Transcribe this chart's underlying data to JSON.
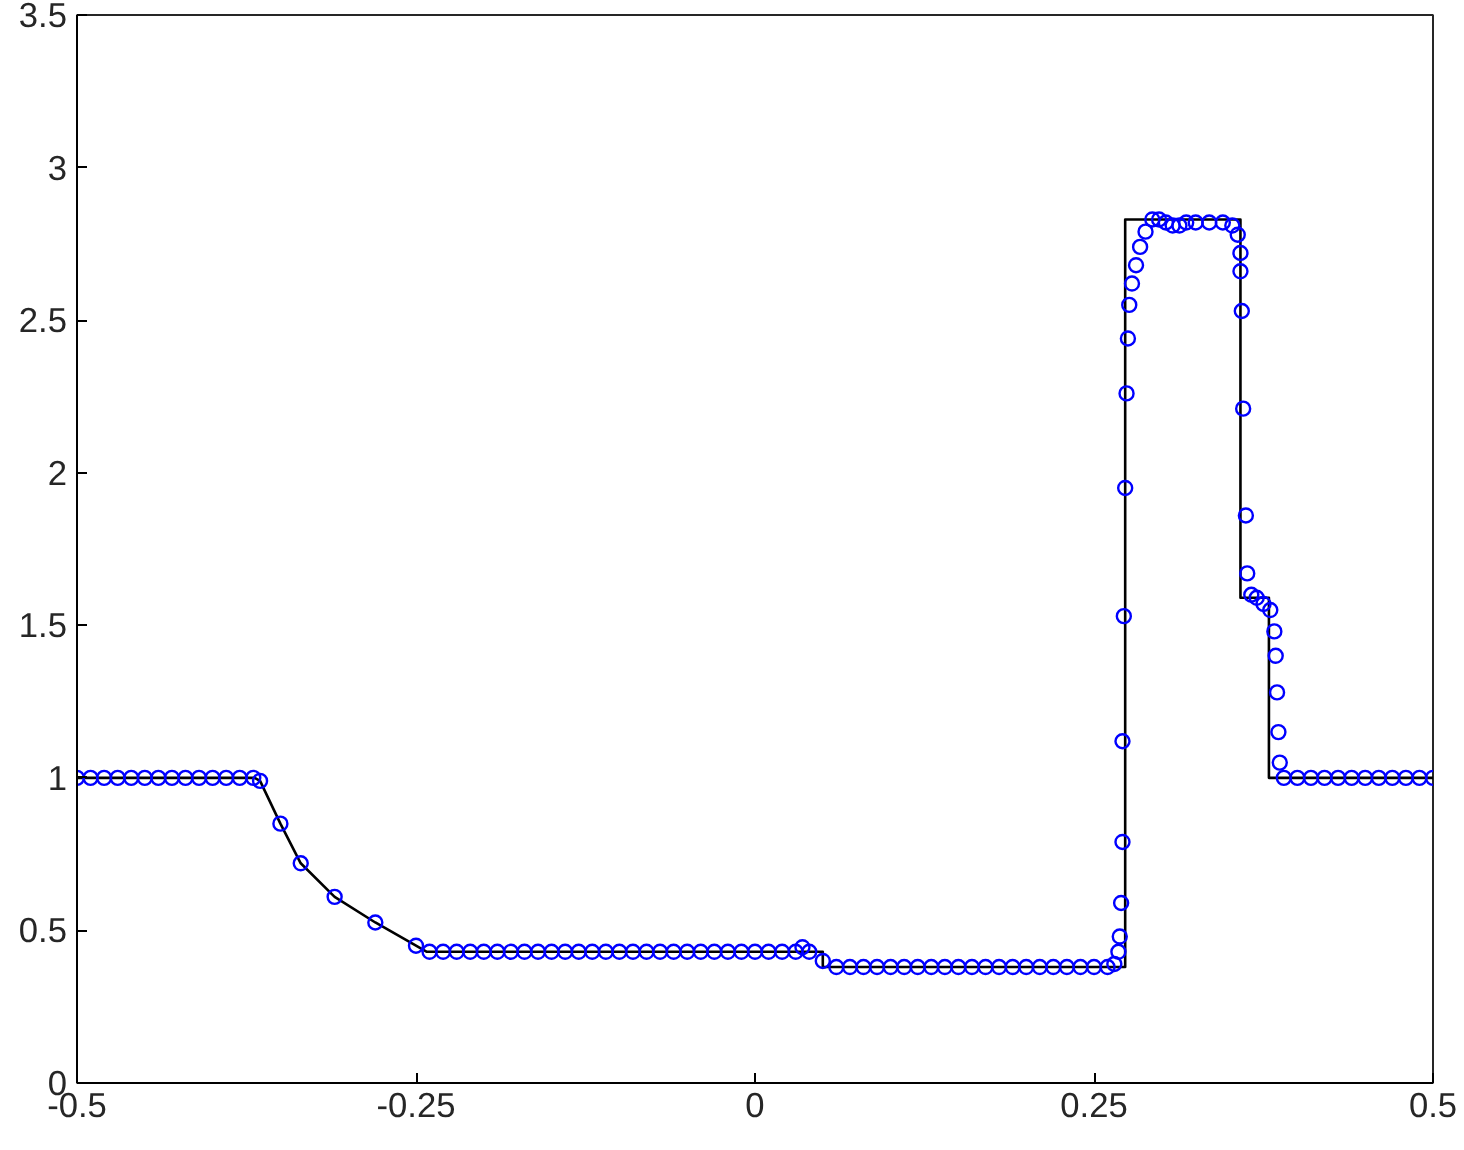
{
  "chart_data": {
    "type": "scatter",
    "xlim": [
      -0.5,
      0.5
    ],
    "ylim": [
      0,
      3.5
    ],
    "xticks": [
      -0.5,
      -0.25,
      0,
      0.25,
      0.5
    ],
    "yticks": [
      0,
      0.5,
      1,
      1.5,
      2,
      2.5,
      3,
      3.5
    ],
    "grid": false,
    "series": [
      {
        "type": "line",
        "color": "#000000",
        "line_style": "solid",
        "marker": "none",
        "x": [
          -0.5,
          -0.369,
          -0.365,
          -0.35,
          -0.335,
          -0.31,
          -0.28,
          -0.25,
          -0.242,
          0.05,
          0.05,
          0.273,
          0.273,
          0.358,
          0.358,
          0.379,
          0.379,
          0.5
        ],
        "values": [
          1.0,
          1.0,
          0.99,
          0.85,
          0.72,
          0.61,
          0.526,
          0.45,
          0.43,
          0.43,
          0.38,
          0.38,
          2.83,
          2.83,
          1.59,
          1.59,
          1.0,
          1.0
        ]
      },
      {
        "color": "#0000ff",
        "marker": "circle",
        "x": [
          -0.5,
          -0.49,
          -0.48,
          -0.47,
          -0.46,
          -0.45,
          -0.44,
          -0.43,
          -0.42,
          -0.41,
          -0.4,
          -0.39,
          -0.38,
          -0.37,
          -0.365,
          -0.35,
          -0.335,
          -0.31,
          -0.28,
          -0.25,
          -0.24,
          -0.23,
          -0.22,
          -0.21,
          -0.2,
          -0.19,
          -0.18,
          -0.17,
          -0.16,
          -0.15,
          -0.14,
          -0.13,
          -0.12,
          -0.11,
          -0.1,
          -0.09,
          -0.08,
          -0.07,
          -0.06,
          -0.05,
          -0.04,
          -0.03,
          -0.02,
          -0.01,
          0,
          0.01,
          0.02,
          0.03,
          0.035,
          0.04,
          0.05,
          0.06,
          0.07,
          0.08,
          0.09,
          0.1,
          0.11,
          0.12,
          0.13,
          0.14,
          0.15,
          0.16,
          0.17,
          0.18,
          0.19,
          0.2,
          0.21,
          0.22,
          0.23,
          0.24,
          0.25,
          0.26,
          0.265,
          0.268,
          0.269,
          0.27,
          0.271,
          0.271,
          0.272,
          0.273,
          0.274,
          0.275,
          0.276,
          0.278,
          0.281,
          0.284,
          0.288,
          0.293,
          0.298,
          0.303,
          0.308,
          0.313,
          0.318,
          0.325,
          0.335,
          0.345,
          0.352,
          0.356,
          0.358,
          0.358,
          0.359,
          0.36,
          0.362,
          0.363,
          0.366,
          0.37,
          0.375,
          0.38,
          0.383,
          0.384,
          0.385,
          0.386,
          0.387,
          0.39,
          0.4,
          0.41,
          0.42,
          0.43,
          0.44,
          0.45,
          0.46,
          0.47,
          0.48,
          0.49,
          0.5
        ],
        "values": [
          1.0,
          1.0,
          1.0,
          1.0,
          1.0,
          1.0,
          1.0,
          1.0,
          1.0,
          1.0,
          1.0,
          1.0,
          1.0,
          1.0,
          0.99,
          0.85,
          0.72,
          0.61,
          0.526,
          0.45,
          0.43,
          0.43,
          0.43,
          0.43,
          0.43,
          0.43,
          0.43,
          0.43,
          0.43,
          0.43,
          0.43,
          0.43,
          0.43,
          0.43,
          0.43,
          0.43,
          0.43,
          0.43,
          0.43,
          0.43,
          0.43,
          0.43,
          0.43,
          0.43,
          0.43,
          0.43,
          0.43,
          0.43,
          0.445,
          0.43,
          0.4,
          0.38,
          0.38,
          0.38,
          0.38,
          0.38,
          0.38,
          0.38,
          0.38,
          0.38,
          0.38,
          0.38,
          0.38,
          0.38,
          0.38,
          0.38,
          0.38,
          0.38,
          0.38,
          0.38,
          0.38,
          0.38,
          0.39,
          0.43,
          0.48,
          0.59,
          0.79,
          1.12,
          1.53,
          1.95,
          2.26,
          2.44,
          2.55,
          2.62,
          2.68,
          2.74,
          2.79,
          2.83,
          2.83,
          2.82,
          2.81,
          2.81,
          2.82,
          2.82,
          2.82,
          2.82,
          2.81,
          2.78,
          2.72,
          2.66,
          2.53,
          2.21,
          1.86,
          1.67,
          1.6,
          1.59,
          1.57,
          1.55,
          1.48,
          1.4,
          1.28,
          1.15,
          1.05,
          1.0,
          1.0,
          1.0,
          1.0,
          1.0,
          1.0,
          1.0,
          1.0,
          1.0,
          1.0,
          1.0,
          1.0
        ]
      }
    ]
  }
}
